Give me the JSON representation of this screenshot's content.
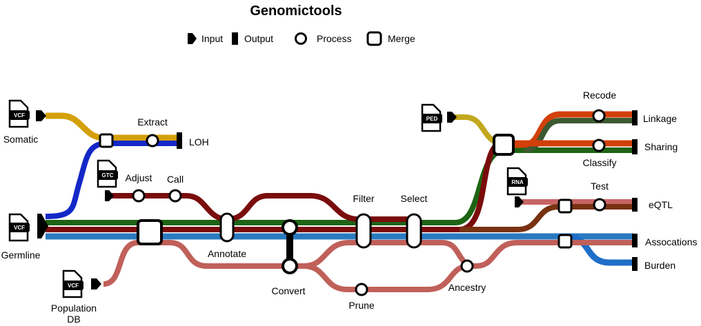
{
  "title": "Genomictools",
  "legend": {
    "input": "Input",
    "output": "Output",
    "process": "Process",
    "merge": "Merge"
  },
  "colors": {
    "somatic": "#D4A00A",
    "blue": "#1428C8",
    "darkred": "#7A0C0C",
    "green": "#1E6414",
    "teal": "#2A7AC0",
    "salmon": "#C0605A",
    "olive": "#C2A81E",
    "orange": "#D2400A",
    "darkgreen": "#3C5A32",
    "rose": "#C86464",
    "brown": "#783212",
    "blue2": "#1E6EC8"
  },
  "inputs": {
    "somatic": {
      "file": "VCF",
      "label": "Somatic"
    },
    "germline": {
      "file": "VCF",
      "label": "Germline"
    },
    "gtc": {
      "file": "GTC"
    },
    "population": {
      "file": "VCF",
      "label1": "Population",
      "label2": "DB"
    },
    "ped": {
      "file": "PED"
    },
    "rna": {
      "file": "RNA"
    }
  },
  "processes": {
    "extract": "Extract",
    "adjust": "Adjust",
    "call": "Call",
    "annotate": "Annotate",
    "convert": "Convert",
    "filter": "Filter",
    "select": "Select",
    "prune": "Prune",
    "ancestry": "Ancestry",
    "recode": "Recode",
    "classify": "Classify",
    "test": "Test"
  },
  "outputs": {
    "loh": "LOH",
    "linkage": "Linkage",
    "sharing": "Sharing",
    "eqtl": "eQTL",
    "associations": "Assocations",
    "burden": "Burden"
  }
}
